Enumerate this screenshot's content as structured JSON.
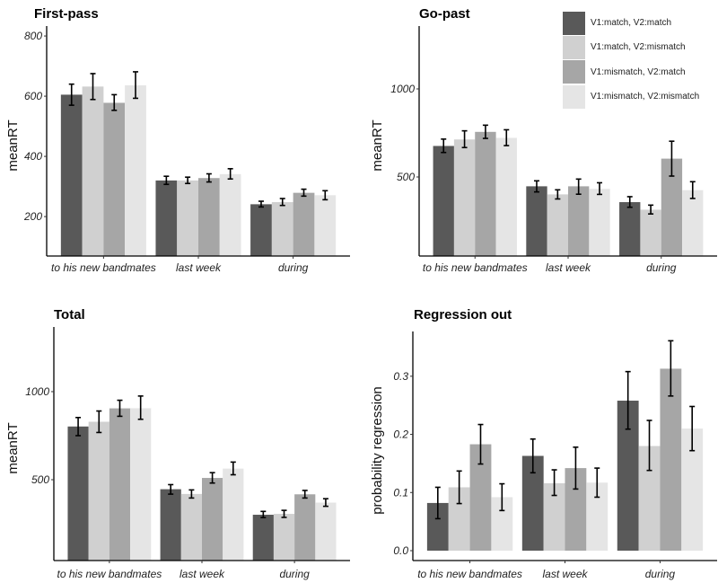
{
  "legend": {
    "items": [
      {
        "label": "V1:match, V2:match",
        "color": "#595959"
      },
      {
        "label": "V1:match, V2:mismatch",
        "color": "#d0d0d0"
      },
      {
        "label": "V1:mismatch, V2:match",
        "color": "#a6a6a6"
      },
      {
        "label": "V1:mismatch, V2:mismatch",
        "color": "#e5e5e5"
      }
    ]
  },
  "chart_data": [
    {
      "type": "bar",
      "title": "First-pass",
      "xlabel": "",
      "ylabel": "meanRT",
      "categories": [
        "to his new bandmates",
        "last week",
        "during"
      ],
      "ylim": [
        69,
        833
      ],
      "yticks": [
        200,
        400,
        600,
        800
      ],
      "ytick_labels": [
        "200",
        "400",
        "600",
        "800"
      ],
      "series": [
        {
          "name": "V1:match, V2:match",
          "values": [
            605,
            320,
            241
          ],
          "error_low": [
            570,
            307,
            232
          ],
          "error_high": [
            640,
            334,
            251
          ]
        },
        {
          "name": "V1:match, V2:mismatch",
          "values": [
            632,
            320,
            248
          ],
          "error_low": [
            589,
            310,
            237
          ],
          "error_high": [
            675,
            331,
            260
          ]
        },
        {
          "name": "V1:mismatch, V2:match",
          "values": [
            578,
            328,
            279
          ],
          "error_low": [
            553,
            315,
            268
          ],
          "error_high": [
            605,
            342,
            291
          ]
        },
        {
          "name": "V1:mismatch, V2:mismatch",
          "values": [
            636,
            341,
            271
          ],
          "error_low": [
            593,
            325,
            256
          ],
          "error_high": [
            681,
            359,
            286
          ]
        }
      ]
    },
    {
      "type": "bar",
      "title": "Go-past",
      "xlabel": "",
      "ylabel": "meanRT",
      "categories": [
        "to his new bandmates",
        "last week",
        "during"
      ],
      "ylim": [
        51,
        1357
      ],
      "yticks": [
        500,
        1000
      ],
      "ytick_labels": [
        "500",
        "1000"
      ],
      "series": [
        {
          "name": "V1:match, V2:match",
          "values": [
            676,
            447,
            357
          ],
          "error_low": [
            639,
            415,
            328
          ],
          "error_high": [
            715,
            478,
            388
          ]
        },
        {
          "name": "V1:match, V2:mismatch",
          "values": [
            713,
            401,
            314
          ],
          "error_low": [
            667,
            375,
            290
          ],
          "error_high": [
            762,
            427,
            340
          ]
        },
        {
          "name": "V1:mismatch, V2:match",
          "values": [
            756,
            447,
            604
          ],
          "error_low": [
            719,
            402,
            505
          ],
          "error_high": [
            794,
            488,
            703
          ]
        },
        {
          "name": "V1:mismatch, V2:mismatch",
          "values": [
            722,
            432,
            425
          ],
          "error_low": [
            678,
            401,
            378
          ],
          "error_high": [
            768,
            467,
            473
          ]
        }
      ]
    },
    {
      "type": "bar",
      "title": "Total",
      "xlabel": "",
      "ylabel": "meanRT",
      "categories": [
        "to his new bandmates",
        "last week",
        "during"
      ],
      "ylim": [
        41,
        1367
      ],
      "yticks": [
        500,
        1000
      ],
      "ytick_labels": [
        "500",
        "1000"
      ],
      "series": [
        {
          "name": "V1:match, V2:match",
          "values": [
            802,
            446,
            301
          ],
          "error_low": [
            750,
            418,
            285
          ],
          "error_high": [
            853,
            472,
            320
          ]
        },
        {
          "name": "V1:match, V2:mismatch",
          "values": [
            829,
            419,
            306
          ],
          "error_low": [
            768,
            396,
            286
          ],
          "error_high": [
            890,
            442,
            326
          ]
        },
        {
          "name": "V1:mismatch, V2:match",
          "values": [
            905,
            510,
            417
          ],
          "error_low": [
            860,
            481,
            396
          ],
          "error_high": [
            951,
            540,
            439
          ]
        },
        {
          "name": "V1:mismatch, V2:mismatch",
          "values": [
            906,
            563,
            370
          ],
          "error_low": [
            843,
            528,
            349
          ],
          "error_high": [
            975,
            600,
            392
          ]
        }
      ]
    },
    {
      "type": "bar",
      "title": "Regression out",
      "xlabel": "",
      "ylabel": "probability regression",
      "categories": [
        "to his new bandmates",
        "last week",
        "during"
      ],
      "ylim": [
        -0.017,
        0.377
      ],
      "yticks": [
        0.0,
        0.1,
        0.2,
        0.3
      ],
      "ytick_labels": [
        "0.0",
        "0.1",
        "0.2",
        "0.3"
      ],
      "series": [
        {
          "name": "V1:match, V2:match",
          "values": [
            0.082,
            0.163,
            0.258
          ],
          "error_low": [
            0.055,
            0.134,
            0.209
          ],
          "error_high": [
            0.109,
            0.192,
            0.308
          ]
        },
        {
          "name": "V1:match, V2:mismatch",
          "values": [
            0.109,
            0.116,
            0.18
          ],
          "error_low": [
            0.081,
            0.095,
            0.138
          ],
          "error_high": [
            0.137,
            0.139,
            0.224
          ]
        },
        {
          "name": "V1:mismatch, V2:match",
          "values": [
            0.183,
            0.142,
            0.313
          ],
          "error_low": [
            0.149,
            0.106,
            0.266
          ],
          "error_high": [
            0.217,
            0.178,
            0.361
          ]
        },
        {
          "name": "V1:mismatch, V2:mismatch",
          "values": [
            0.092,
            0.117,
            0.21
          ],
          "error_low": [
            0.069,
            0.092,
            0.172
          ],
          "error_high": [
            0.115,
            0.142,
            0.248
          ]
        }
      ]
    }
  ]
}
